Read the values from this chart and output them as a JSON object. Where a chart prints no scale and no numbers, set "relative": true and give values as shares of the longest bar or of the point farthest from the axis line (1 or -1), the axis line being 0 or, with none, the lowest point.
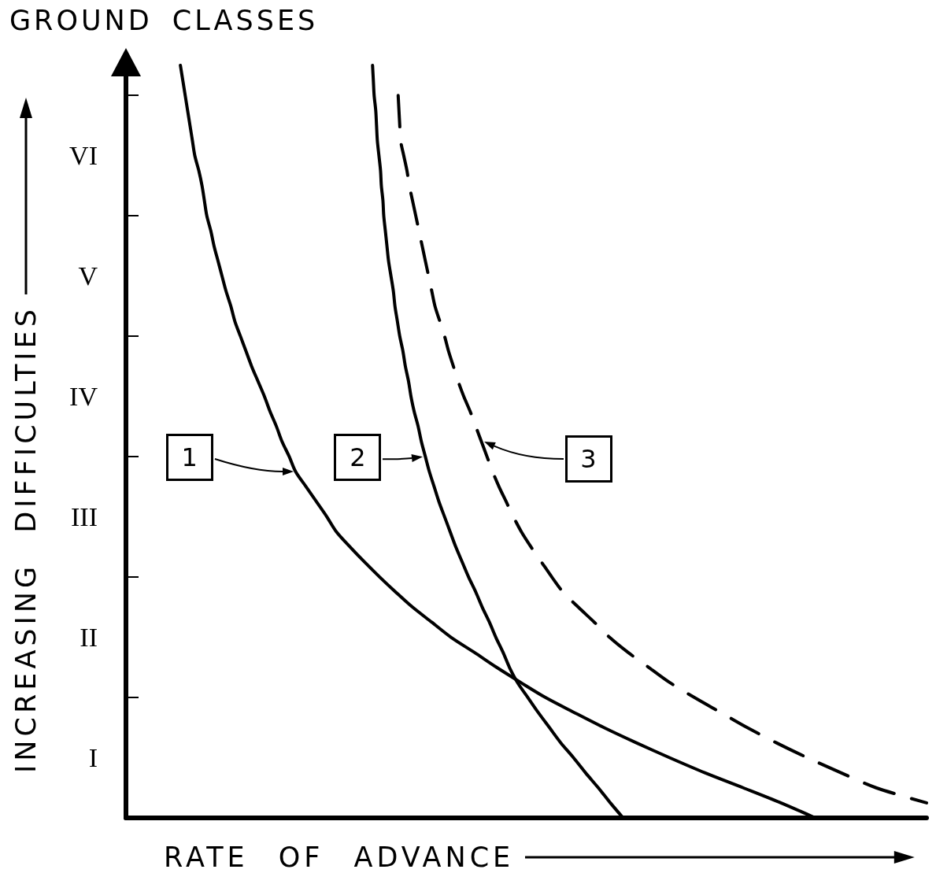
{
  "chart_data": {
    "type": "line",
    "orientation": "horizontal",
    "relative": true,
    "title": "GROUND CLASSES",
    "xlabel": "RATE OF ADVANCE",
    "ylabel": "INCREASING DIFFICULTIES",
    "categories": [
      null,
      null,
      null,
      null,
      null,
      null,
      "VI",
      null,
      null,
      null,
      null,
      null,
      null,
      null,
      "V",
      null,
      null,
      null,
      null,
      null,
      null,
      null,
      "IV",
      null,
      null,
      null,
      null,
      null,
      null,
      null,
      "III",
      null,
      null,
      null,
      null,
      null,
      null,
      null,
      "II",
      null,
      null,
      null,
      null,
      null,
      null,
      null,
      "I",
      null,
      null,
      null,
      null
    ],
    "series": [
      {
        "color": "#000000",
        "line_style": "solid",
        "values": [
          0.068,
          0.071,
          0.074,
          0.077,
          0.08,
          0.083,
          0.086,
          0.091,
          0.095,
          0.098,
          0.101,
          0.106,
          0.11,
          0.115,
          0.12,
          0.125,
          0.131,
          0.136,
          0.143,
          0.15,
          0.157,
          0.165,
          0.173,
          0.18,
          0.188,
          0.195,
          0.204,
          0.212,
          0.225,
          0.238,
          0.251,
          0.263,
          0.28,
          0.298,
          0.317,
          0.337,
          0.358,
          0.382,
          0.406,
          0.435,
          0.463,
          0.493,
          0.524,
          0.56,
          0.597,
          0.637,
          0.679,
          0.723,
          0.771,
          0.818,
          0.861
        ]
      },
      {
        "color": "#000000",
        "line_style": "solid",
        "values": [
          0.308,
          0.309,
          0.31,
          0.312,
          0.313,
          0.314,
          0.316,
          0.318,
          0.319,
          0.321,
          0.322,
          0.324,
          0.326,
          0.328,
          0.331,
          0.334,
          0.336,
          0.339,
          0.342,
          0.346,
          0.349,
          0.353,
          0.356,
          0.36,
          0.365,
          0.369,
          0.374,
          0.379,
          0.385,
          0.391,
          0.398,
          0.405,
          0.412,
          0.42,
          0.428,
          0.437,
          0.445,
          0.454,
          0.462,
          0.471,
          0.479,
          0.489,
          0.502,
          0.515,
          0.529,
          0.543,
          0.559,
          0.574,
          0.59,
          0.605,
          0.621
        ]
      },
      {
        "color": "#000000",
        "line_style": "dashed",
        "values": [
          null,
          null,
          0.34,
          0.341,
          0.342,
          0.343,
          0.347,
          0.351,
          0.354,
          0.358,
          0.362,
          0.366,
          0.37,
          0.374,
          0.378,
          0.382,
          0.386,
          0.392,
          0.398,
          0.403,
          0.409,
          0.415,
          0.422,
          0.43,
          0.437,
          0.444,
          0.451,
          0.458,
          0.466,
          0.475,
          0.484,
          0.494,
          0.506,
          0.519,
          0.532,
          0.546,
          0.565,
          0.585,
          0.604,
          0.627,
          0.653,
          0.679,
          0.71,
          0.743,
          0.776,
          0.812,
          0.851,
          0.893,
          0.937,
          1.0,
          null
        ]
      }
    ],
    "annotations": [
      "1",
      "2",
      "3"
    ]
  }
}
